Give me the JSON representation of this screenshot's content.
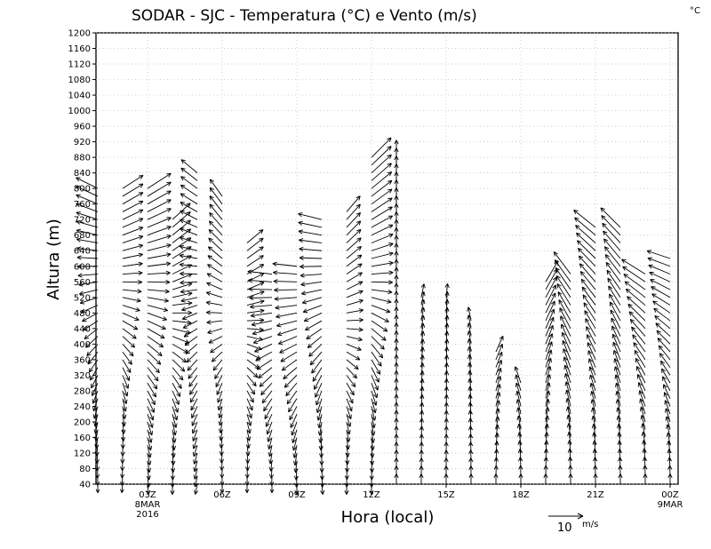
{
  "chart_data": {
    "type": "vector-field",
    "title": "SODAR - SJC - Temperatura (°C) e Vento (m/s)",
    "corner_unit": "°C",
    "xlabel": "Hora (local)",
    "ylabel": "Altura (m)",
    "y_range": [
      40,
      1200
    ],
    "y_ticks": [
      40,
      80,
      120,
      160,
      200,
      240,
      280,
      320,
      360,
      400,
      440,
      480,
      520,
      560,
      600,
      640,
      680,
      720,
      760,
      800,
      840,
      880,
      920,
      960,
      1000,
      1040,
      1080,
      1120,
      1160,
      1200
    ],
    "x_range_hours": [
      0,
      23.5
    ],
    "x_ticks": [
      {
        "hour": 2,
        "label": "03Z",
        "sub": "8MAR",
        "sub2": "2016"
      },
      {
        "hour": 5,
        "label": "06Z"
      },
      {
        "hour": 8,
        "label": "09Z"
      },
      {
        "hour": 11,
        "label": "12Z"
      },
      {
        "hour": 14,
        "label": "15Z"
      },
      {
        "hour": 17,
        "label": "18Z"
      },
      {
        "hour": 20,
        "label": "21Z"
      },
      {
        "hour": 23,
        "label": "00Z",
        "sub": "9MAR"
      }
    ],
    "grid": true,
    "reference_vector": {
      "speed": 10,
      "label": "10",
      "unit": "m/s"
    },
    "series": [
      {
        "hour": 0.0,
        "top": 800,
        "u_low": 0.0,
        "v_low": -1.0,
        "u_top": -0.7,
        "v_top": 0.35,
        "speed_low": 2.5,
        "speed_top": 7
      },
      {
        "hour": 1.0,
        "top": 800,
        "u_low": -0.1,
        "v_low": -1.0,
        "u_top": 0.7,
        "v_top": 0.45,
        "speed_low": 2.5,
        "speed_top": 7
      },
      {
        "hour": 2.0,
        "top": 800,
        "u_low": 0.1,
        "v_low": -1.0,
        "u_top": 0.7,
        "v_top": 0.45,
        "speed_low": 3,
        "speed_top": 8
      },
      {
        "hour": 3.0,
        "top": 720,
        "u_low": 0.0,
        "v_low": -1.0,
        "u_top": 0.6,
        "v_top": 0.55,
        "speed_low": 3,
        "speed_top": 7
      },
      {
        "hour": 4.0,
        "top": 840,
        "u_low": -0.2,
        "v_low": -1.0,
        "u_top": -0.6,
        "v_top": 0.5,
        "speed_low": 3,
        "speed_top": 6
      },
      {
        "hour": 5.0,
        "top": 780,
        "u_low": 0.0,
        "v_low": -1.0,
        "u_top": -0.5,
        "v_top": 0.7,
        "speed_low": 2.5,
        "speed_top": 6
      },
      {
        "hour": 6.0,
        "top": 660,
        "u_low": 0.0,
        "v_low": -1.0,
        "u_top": 0.6,
        "v_top": 0.5,
        "speed_low": 2.5,
        "speed_top": 6
      },
      {
        "hour": 7.0,
        "top": 580,
        "u_low": 0.0,
        "v_low": -1.0,
        "u_top": -0.9,
        "v_top": 0.1,
        "speed_low": 2.5,
        "speed_top": 7
      },
      {
        "hour": 8.0,
        "top": 600,
        "u_low": 0.0,
        "v_low": -1.0,
        "u_top": -0.9,
        "v_top": 0.1,
        "speed_low": 3,
        "speed_top": 7
      },
      {
        "hour": 9.0,
        "top": 720,
        "u_low": 0.1,
        "v_low": -1.0,
        "u_top": -0.8,
        "v_top": 0.2,
        "speed_low": 3,
        "speed_top": 7
      },
      {
        "hour": 10.0,
        "top": 740,
        "u_low": 0.0,
        "v_low": -1.0,
        "u_top": 0.6,
        "v_top": 0.7,
        "speed_low": 3,
        "speed_top": 6
      },
      {
        "hour": 11.0,
        "top": 880,
        "u_low": 0.0,
        "v_low": -1.0,
        "u_top": 0.6,
        "v_top": 0.6,
        "speed_low": 3,
        "speed_top": 8
      },
      {
        "hour": 12.0,
        "top": 880,
        "u_low": 0.0,
        "v_low": 1.0,
        "u_top": 0.0,
        "v_top": 1.0,
        "speed_low": 3,
        "speed_top": 5
      },
      {
        "hour": 13.0,
        "top": 520,
        "u_low": 0.0,
        "v_low": 1.0,
        "u_top": 0.2,
        "v_top": 1.0,
        "speed_low": 3,
        "speed_top": 4
      },
      {
        "hour": 14.0,
        "top": 520,
        "u_low": 0.0,
        "v_low": 1.0,
        "u_top": 0.1,
        "v_top": 1.0,
        "speed_low": 3,
        "speed_top": 4
      },
      {
        "hour": 15.0,
        "top": 460,
        "u_low": 0.0,
        "v_low": 1.0,
        "u_top": -0.2,
        "v_top": 1.0,
        "speed_low": 3,
        "speed_top": 4
      },
      {
        "hour": 16.0,
        "top": 380,
        "u_low": 0.0,
        "v_low": 1.0,
        "u_top": 0.4,
        "v_top": 0.9,
        "speed_low": 3,
        "speed_top": 5
      },
      {
        "hour": 17.0,
        "top": 300,
        "u_low": 0.0,
        "v_low": 1.0,
        "u_top": -0.3,
        "v_top": 0.9,
        "speed_low": 3,
        "speed_top": 5
      },
      {
        "hour": 18.0,
        "top": 560,
        "u_low": 0.0,
        "v_low": 1.0,
        "u_top": 0.5,
        "v_top": 0.85,
        "speed_low": 3,
        "speed_top": 7
      },
      {
        "hour": 19.0,
        "top": 580,
        "u_low": 0.0,
        "v_low": 1.0,
        "u_top": -0.6,
        "v_top": 0.8,
        "speed_low": 3,
        "speed_top": 8
      },
      {
        "hour": 20.0,
        "top": 700,
        "u_low": 0.0,
        "v_low": 1.0,
        "u_top": -0.75,
        "v_top": 0.6,
        "speed_low": 3,
        "speed_top": 8
      },
      {
        "hour": 21.0,
        "top": 700,
        "u_low": 0.0,
        "v_low": 1.0,
        "u_top": -0.7,
        "v_top": 0.7,
        "speed_low": 3,
        "speed_top": 8
      },
      {
        "hour": 22.0,
        "top": 580,
        "u_low": 0.0,
        "v_low": 1.0,
        "u_top": -0.8,
        "v_top": 0.5,
        "speed_low": 3,
        "speed_top": 8
      },
      {
        "hour": 23.0,
        "top": 620,
        "u_low": 0.0,
        "v_low": 1.0,
        "u_top": -0.9,
        "v_top": 0.3,
        "speed_low": 3,
        "speed_top": 7
      }
    ]
  }
}
